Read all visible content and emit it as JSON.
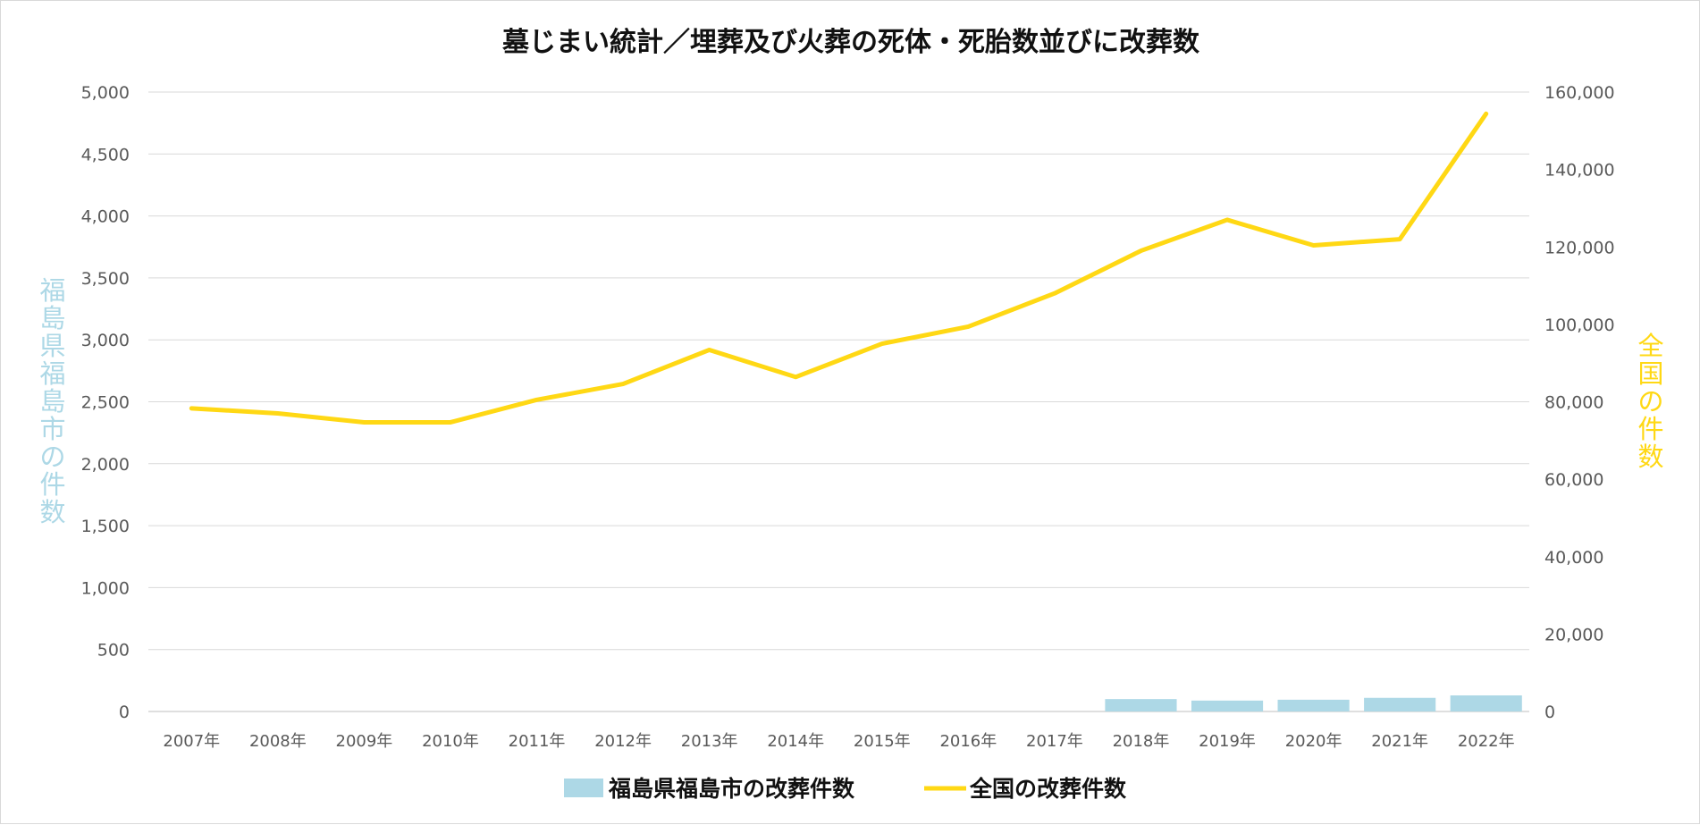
{
  "chart_data": {
    "type": "bar+line",
    "title": "墓じまい統計／埋葬及び火葬の死体・死胎数並びに改葬数",
    "categories": [
      "2007年",
      "2008年",
      "2009年",
      "2010年",
      "2011年",
      "2012年",
      "2013年",
      "2014年",
      "2015年",
      "2016年",
      "2017年",
      "2018年",
      "2019年",
      "2020年",
      "2021年",
      "2022年"
    ],
    "y_left": {
      "label": "福島県福島市の件数",
      "ticks": [
        "0",
        "500",
        "1,000",
        "1,500",
        "2,000",
        "2,500",
        "3,000",
        "3,500",
        "4,000",
        "4,500",
        "5,000"
      ],
      "ylim": [
        0,
        5000
      ]
    },
    "y_right": {
      "label": "全国の件数",
      "ticks": [
        "0",
        "20,000",
        "40,000",
        "60,000",
        "80,000",
        "100,000",
        "120,000",
        "140,000",
        "160,000"
      ],
      "ylim": [
        0,
        160000
      ]
    },
    "grid": true,
    "legend_position": "bottom-center",
    "series": [
      {
        "name": "福島県福島市の改葬件数",
        "type": "bar",
        "axis": "left",
        "color": "#add8e6",
        "values": [
          null,
          null,
          null,
          null,
          null,
          null,
          null,
          null,
          null,
          null,
          null,
          100,
          88,
          95,
          110,
          130
        ]
      },
      {
        "name": "全国の改葬件数",
        "type": "line",
        "axis": "right",
        "color": "#ffd814",
        "values": [
          78300,
          77000,
          74700,
          74700,
          80500,
          84600,
          93400,
          86400,
          95000,
          99400,
          108000,
          119000,
          127000,
          120400,
          122000,
          154400
        ]
      }
    ]
  }
}
